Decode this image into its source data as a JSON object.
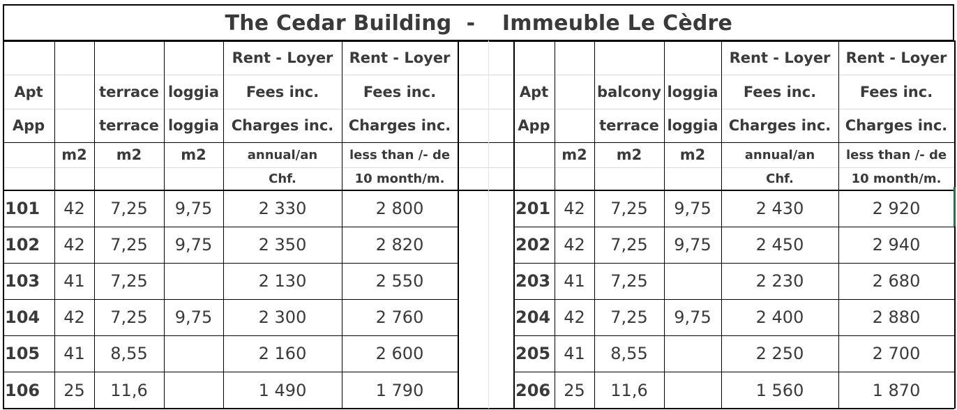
{
  "title": {
    "english": "The Cedar Building",
    "separator": "-",
    "french": "Immeuble Le Cèdre"
  },
  "left_headers": {
    "apt": [
      "Apt",
      "App"
    ],
    "col3": [
      "terrace",
      "terrace"
    ],
    "col4": [
      "loggia",
      "loggia"
    ],
    "rent1": [
      "Rent - Loyer",
      "Fees inc.",
      "Charges inc."
    ],
    "rent2": [
      "Rent - Loyer",
      "Fees inc.",
      "Charges inc."
    ],
    "units": [
      "m2",
      "m2",
      "m2",
      "annual/an",
      "less than /- de"
    ],
    "units2": [
      "Chf.",
      "10 month/m."
    ]
  },
  "right_headers": {
    "apt": [
      "Apt",
      "App"
    ],
    "col3": [
      "balcony",
      "terrace"
    ],
    "col4": [
      "loggia",
      "loggia"
    ],
    "rent1": [
      "Rent - Loyer",
      "Fees inc.",
      "Charges inc."
    ],
    "rent2": [
      "Rent - Loyer",
      "Fees inc.",
      "Charges inc."
    ],
    "units": [
      "m2",
      "m2",
      "m2",
      "annual/an",
      "less than /- de"
    ],
    "units2": [
      "Chf.",
      "10 month/m."
    ]
  },
  "left_rows": [
    [
      "101",
      "42",
      "7,25",
      "9,75",
      "2 330",
      "2 800"
    ],
    [
      "102",
      "42",
      "7,25",
      "9,75",
      "2 350",
      "2 820"
    ],
    [
      "103",
      "41",
      "7,25",
      "",
      "2 130",
      "2 550"
    ],
    [
      "104",
      "42",
      "7,25",
      "9,75",
      "2 300",
      "2 760"
    ],
    [
      "105",
      "41",
      "8,55",
      "",
      "2 160",
      "2 600"
    ],
    [
      "106",
      "25",
      "11,6",
      "",
      "1 490",
      "1 790"
    ]
  ],
  "right_rows": [
    [
      "201",
      "42",
      "7,25",
      "9,75",
      "2 430",
      "2 920"
    ],
    [
      "202",
      "42",
      "7,25",
      "9,75",
      "2 450",
      "2 940"
    ],
    [
      "203",
      "41",
      "7,25",
      "",
      "2 230",
      "2 680"
    ],
    [
      "204",
      "42",
      "7,25",
      "9,75",
      "2 400",
      "2 880"
    ],
    [
      "205",
      "41",
      "8,55",
      "",
      "2 250",
      "2 700"
    ],
    [
      "206",
      "25",
      "11,6",
      "",
      "1 560",
      "1 870"
    ]
  ],
  "colors": {
    "border": "#000000",
    "gridline": "#d9d9d9",
    "text": "#3a3a3a",
    "accent": "#217346"
  }
}
